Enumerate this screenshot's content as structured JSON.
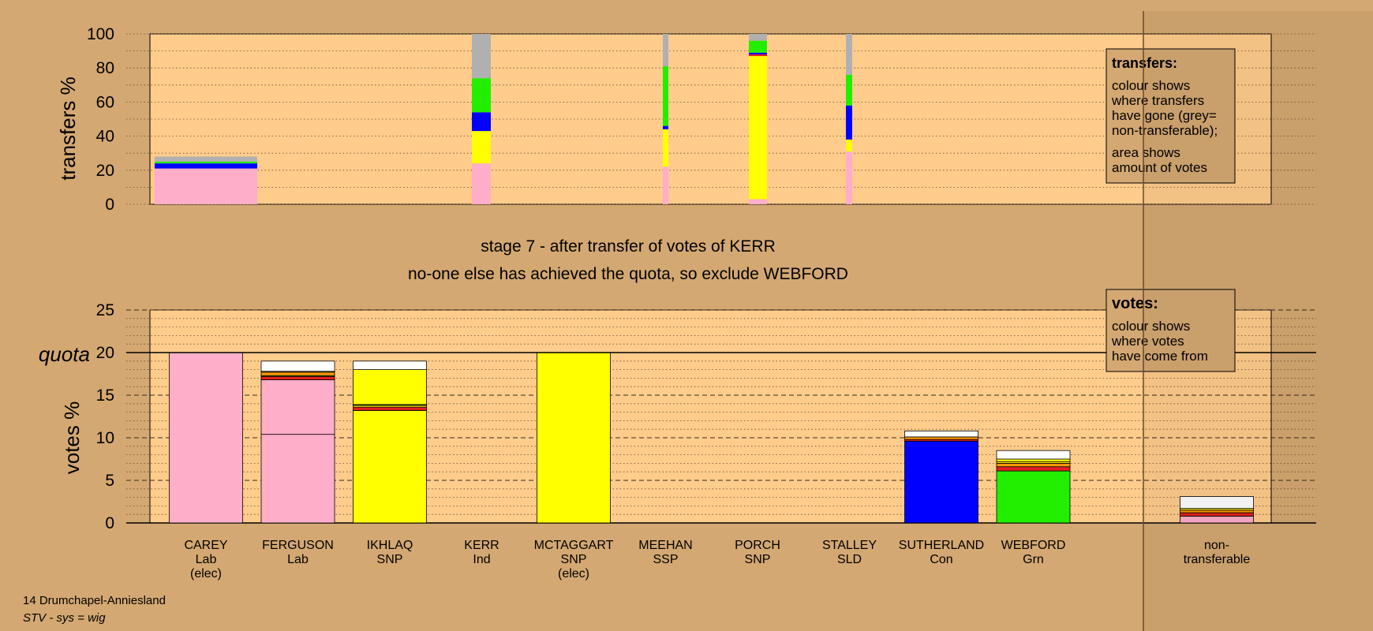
{
  "chart_data": [
    {
      "type": "bar",
      "stacked": true,
      "ylabel": "transfers %",
      "ylim": [
        0,
        100
      ],
      "yticks": [
        "0",
        "20",
        "40",
        "60",
        "80",
        "100"
      ],
      "grid": "dotted",
      "note": "bar width shows amount of votes transferred",
      "bars": [
        {
          "source": "CAREY",
          "segments": [
            {
              "party": "Lab",
              "from": 0,
              "to": 21
            },
            {
              "party": "Con",
              "from": 21,
              "to": 24
            },
            {
              "party": "Grn",
              "from": 24,
              "to": 25
            },
            {
              "party": "non-transferable",
              "from": 25,
              "to": 28
            }
          ]
        },
        {
          "source": "KERR",
          "segments": [
            {
              "party": "Lab",
              "from": 0,
              "to": 24
            },
            {
              "party": "SNP",
              "from": 24,
              "to": 43
            },
            {
              "party": "Con",
              "from": 43,
              "to": 54
            },
            {
              "party": "Grn",
              "from": 54,
              "to": 74
            },
            {
              "party": "non-transferable",
              "from": 74,
              "to": 100
            }
          ]
        },
        {
          "source": "MEEHAN",
          "segments": [
            {
              "party": "Lab",
              "from": 0,
              "to": 22
            },
            {
              "party": "SNP",
              "from": 22,
              "to": 44
            },
            {
              "party": "Con",
              "from": 44,
              "to": 46
            },
            {
              "party": "Grn",
              "from": 46,
              "to": 81
            },
            {
              "party": "non-transferable",
              "from": 81,
              "to": 100
            }
          ]
        },
        {
          "source": "PORCH",
          "segments": [
            {
              "party": "Lab",
              "from": 0,
              "to": 3
            },
            {
              "party": "SNP",
              "from": 3,
              "to": 87
            },
            {
              "party": "SSP",
              "from": 87,
              "to": 88
            },
            {
              "party": "Con",
              "from": 88,
              "to": 89
            },
            {
              "party": "Grn",
              "from": 89,
              "to": 96
            },
            {
              "party": "non-transferable",
              "from": 96,
              "to": 100
            }
          ]
        },
        {
          "source": "STALLEY",
          "segments": [
            {
              "party": "Lab",
              "from": 0,
              "to": 31
            },
            {
              "party": "SNP",
              "from": 31,
              "to": 38
            },
            {
              "party": "Con",
              "from": 38,
              "to": 58
            },
            {
              "party": "Grn",
              "from": 58,
              "to": 76
            },
            {
              "party": "non-transferable",
              "from": 76,
              "to": 100
            }
          ]
        }
      ],
      "legend": {
        "title": "transfers:",
        "lines": [
          "colour shows",
          "where transfers",
          "have gone (grey=",
          "non-transferable);",
          "area shows",
          "amount of votes"
        ],
        "position": "top-right"
      }
    },
    {
      "type": "bar",
      "stacked": true,
      "ylabel": "votes %",
      "ylim": [
        0,
        25
      ],
      "yticks": [
        "0",
        "5",
        "10",
        "15",
        "20",
        "25"
      ],
      "quota_label": "quota",
      "quota": 20,
      "grid": "dotted minor, dashed major",
      "candidates": [
        {
          "name": "CAREY",
          "party": "Lab",
          "status": "(elec)",
          "segments": [
            {
              "party": "Lab",
              "value": 20
            }
          ]
        },
        {
          "name": "FERGUSON",
          "party": "Lab",
          "status": "",
          "segments": [
            {
              "party": "Lab",
              "value": 10.4
            },
            {
              "party": "Lab",
              "value": 6.4
            },
            {
              "party": "SSP",
              "value": 0.4
            },
            {
              "party": "Grn",
              "value": 0.1
            },
            {
              "party": "SLD",
              "value": 0.4
            },
            {
              "party": "Ind",
              "value": 0.1
            },
            {
              "party": "other",
              "value": 1.2
            }
          ]
        },
        {
          "name": "IKHLAQ",
          "party": "SNP",
          "status": "",
          "segments": [
            {
              "party": "SNP",
              "value": 13.2
            },
            {
              "party": "SSP",
              "value": 0.4
            },
            {
              "party": "SNP",
              "value": 0.2
            },
            {
              "party": "Lab",
              "value": 0.1
            },
            {
              "party": "SNP",
              "value": 4.1
            },
            {
              "party": "other",
              "value": 1.0
            }
          ]
        },
        {
          "name": "KERR",
          "party": "Ind",
          "status": "",
          "segments": []
        },
        {
          "name": "MCTAGGART",
          "party": "SNP",
          "status": "(elec)",
          "segments": [
            {
              "party": "SNP",
              "value": 20
            }
          ]
        },
        {
          "name": "MEEHAN",
          "party": "SSP",
          "status": "",
          "segments": []
        },
        {
          "name": "PORCH",
          "party": "SNP",
          "status": "",
          "segments": []
        },
        {
          "name": "STALLEY",
          "party": "SLD",
          "status": "",
          "segments": []
        },
        {
          "name": "SUTHERLAND",
          "party": "Con",
          "status": "",
          "segments": [
            {
              "party": "Con",
              "value": 9.6
            },
            {
              "party": "SSP",
              "value": 0.2
            },
            {
              "party": "SLD",
              "value": 0.3
            },
            {
              "party": "other",
              "value": 0.7
            }
          ]
        },
        {
          "name": "WEBFORD",
          "party": "Grn",
          "status": "",
          "segments": [
            {
              "party": "Grn",
              "value": 6.1
            },
            {
              "party": "SSP",
              "value": 0.5
            },
            {
              "party": "SLD",
              "value": 0.4
            },
            {
              "party": "Ind",
              "value": 0.2
            },
            {
              "party": "SNP",
              "value": 0.3
            },
            {
              "party": "other",
              "value": 1.0
            }
          ]
        },
        {
          "name": "non-",
          "party": "transferable",
          "status": "",
          "segments": [
            {
              "party": "Lab",
              "value": 0.8
            },
            {
              "party": "SSP",
              "value": 0.4
            },
            {
              "party": "SLD",
              "value": 0.3
            },
            {
              "party": "Ind",
              "value": 0.2
            },
            {
              "party": "other",
              "value": 1.4
            }
          ]
        }
      ],
      "legend": {
        "title": "votes:",
        "lines": [
          "colour shows",
          "where votes",
          "have come from"
        ],
        "position": "top-right"
      }
    }
  ],
  "stage_text": {
    "line1": "stage 7 - after transfer of votes of KERR",
    "line2": "no-one else has achieved the quota, so exclude WEBFORD"
  },
  "footer": {
    "constituency": "14 Drumchapel-Anniesland",
    "system": "STV - sys = wig"
  },
  "colors": {
    "background": "#d4a872",
    "plot_area": "#ffcc8c",
    "Lab": "#ffaec9",
    "SNP": "#ffff00",
    "Con": "#0000ff",
    "Grn": "#22ee00",
    "SSP": "#e02020",
    "SLD": "#ff9900",
    "Ind": "#ffee00",
    "other": "#ffffff",
    "non-transferable": "#b0b0b0"
  }
}
